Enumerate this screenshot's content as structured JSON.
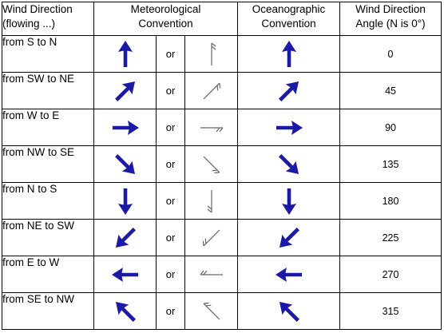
{
  "header": {
    "direction_label": "Wind Direction",
    "direction_sub": "(flowing ...)",
    "met_label_1": "Meteorological",
    "met_label_2": "Convention",
    "oce_label_1": "Oceanographic",
    "oce_label_2": "Convention",
    "angle_label_1": "Wind Direction",
    "angle_label_2": "Angle (N is 0°)"
  },
  "rows": [
    {
      "direction": "from S to N",
      "or_text": "or",
      "angle": "0"
    },
    {
      "direction": "from SW to NE",
      "or_text": "or",
      "angle": "45"
    },
    {
      "direction": "from W to E",
      "or_text": "or",
      "angle": "90"
    },
    {
      "direction": "from NW to SE",
      "or_text": "or",
      "angle": "135"
    },
    {
      "direction": "from N to S",
      "or_text": "or",
      "angle": "180"
    },
    {
      "direction": "from NE to SW",
      "or_text": "or",
      "angle": "225"
    },
    {
      "direction": "from E to W",
      "or_text": "or",
      "angle": "270"
    },
    {
      "direction": "from SE to NW",
      "or_text": "or",
      "angle": "315"
    }
  ],
  "colors": {
    "arrow": "#1a1aa6",
    "barb": "#666666"
  }
}
